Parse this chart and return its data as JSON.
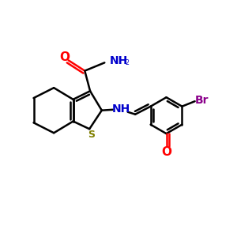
{
  "background_color": "#ffffff",
  "atom_colors": {
    "O": "#ff0000",
    "N": "#0000cc",
    "S": "#808000",
    "Br": "#8B008B",
    "C": "#000000"
  },
  "figsize": [
    3.0,
    3.0
  ],
  "dpi": 100,
  "xlim": [
    0,
    10
  ],
  "ylim": [
    0,
    10
  ]
}
